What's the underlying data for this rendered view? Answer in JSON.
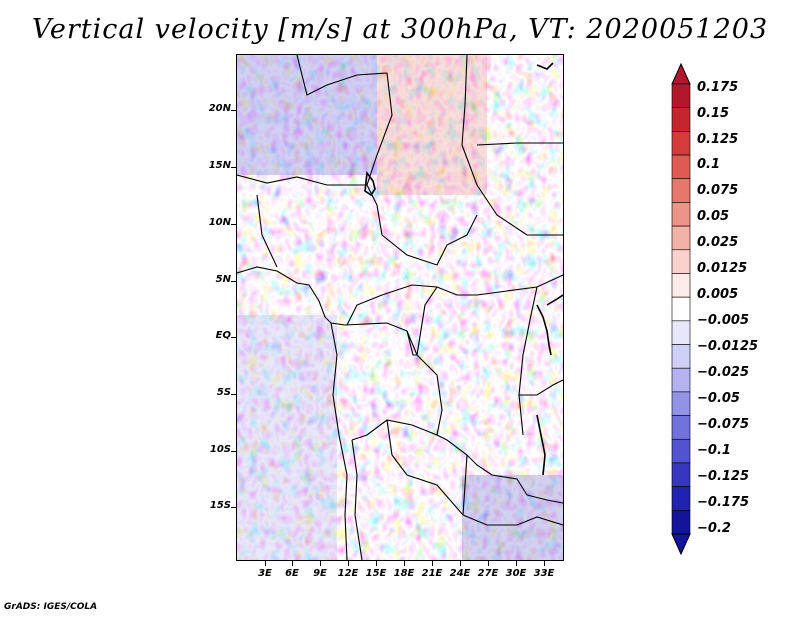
{
  "title": "Vertical velocity [m/s] at 300hPa, VT: 2020051203",
  "footer": "GrADS: IGES/COLA",
  "map": {
    "lat_ticks": [
      "20N",
      "15N",
      "10N",
      "5N",
      "EQ",
      "5S",
      "10S",
      "15S"
    ],
    "lon_ticks": [
      "3E",
      "6E",
      "9E",
      "12E",
      "15E",
      "18E",
      "21E",
      "24E",
      "27E",
      "30E",
      "33E"
    ]
  },
  "colorbar": {
    "labels": [
      "0.175",
      "0.15",
      "0.125",
      "0.1",
      "0.075",
      "0.05",
      "0.025",
      "0.0125",
      "0.005",
      "−0.005",
      "−0.0125",
      "−0.025",
      "−0.05",
      "−0.075",
      "−0.1",
      "−0.125",
      "−0.175",
      "−0.2"
    ],
    "colors": [
      "#b2182b",
      "#c4262e",
      "#d33c3c",
      "#de5a52",
      "#e5776c",
      "#ec9488",
      "#f2b2a8",
      "#f8d2cb",
      "#fcebe7",
      "#ffffff",
      "#e7e7fb",
      "#cfd0f6",
      "#b3b3ef",
      "#9393e6",
      "#7272dc",
      "#5353cf",
      "#3636c0",
      "#2222b0",
      "#13139c"
    ]
  }
}
